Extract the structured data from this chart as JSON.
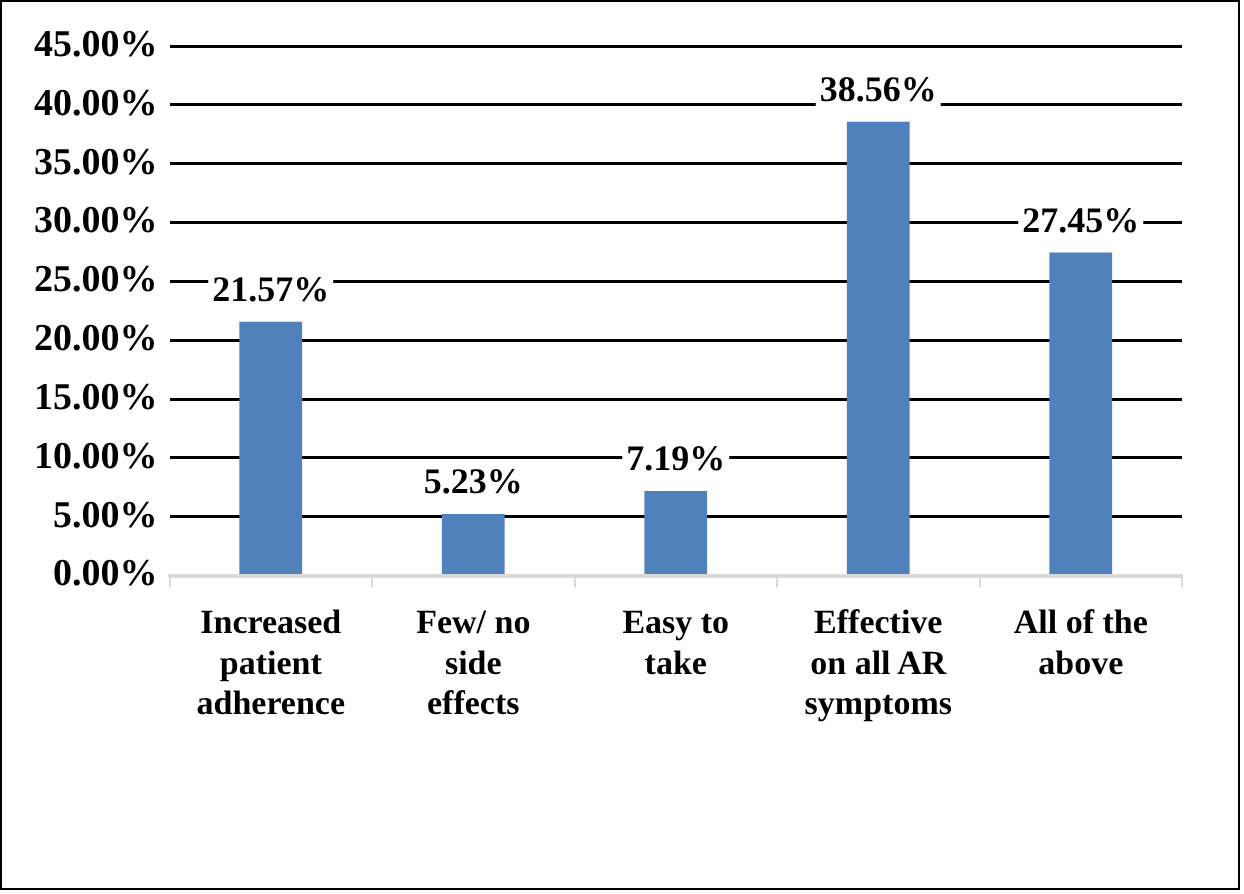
{
  "chart_data": {
    "type": "bar",
    "categories": [
      "Increased patient adherence",
      "Few/ no side effects",
      "Easy to take",
      "Effective on all AR symptoms",
      "All of the above"
    ],
    "values": [
      21.57,
      5.23,
      7.19,
      38.56,
      27.45
    ],
    "value_labels": [
      "21.57%",
      "5.23%",
      "7.19%",
      "38.56%",
      "27.45%"
    ],
    "color": "#4f81bd",
    "ylim": [
      0,
      45
    ],
    "yticks": [
      {
        "value": 0,
        "label": "0.00%"
      },
      {
        "value": 5,
        "label": "5.00%"
      },
      {
        "value": 10,
        "label": "10.00%"
      },
      {
        "value": 15,
        "label": "15.00%"
      },
      {
        "value": 20,
        "label": "20.00%"
      },
      {
        "value": 25,
        "label": "25.00%"
      },
      {
        "value": 30,
        "label": "30.00%"
      },
      {
        "value": 35,
        "label": "35.00%"
      },
      {
        "value": 40,
        "label": "40.00%"
      },
      {
        "value": 45,
        "label": "45.00%"
      }
    ],
    "grid": "y"
  }
}
